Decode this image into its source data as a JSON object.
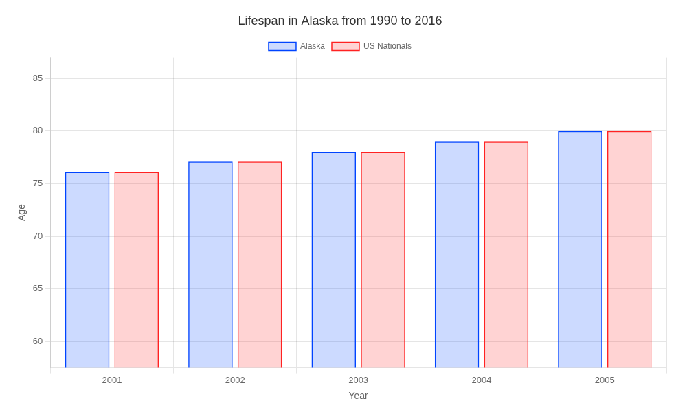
{
  "chart_data": {
    "type": "bar",
    "title": "Lifespan in Alaska from 1990 to 2016",
    "xlabel": "Year",
    "ylabel": "Age",
    "categories": [
      "2001",
      "2002",
      "2003",
      "2004",
      "2005"
    ],
    "series": [
      {
        "name": "Alaska",
        "color": "#0044ff",
        "values": [
          76.1,
          77.1,
          78.0,
          79.0,
          80.0
        ]
      },
      {
        "name": "US Nationals",
        "color": "#ff2222",
        "values": [
          76.1,
          77.1,
          78.0,
          79.0,
          80.0
        ]
      }
    ],
    "ylim": [
      57.5,
      87
    ],
    "yticks": [
      60,
      65,
      70,
      75,
      80,
      85
    ],
    "grid": true,
    "legend": "top"
  }
}
